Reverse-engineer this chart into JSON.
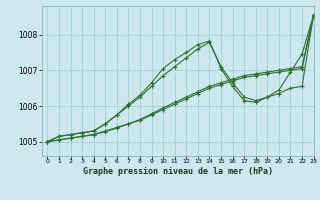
{
  "title": "Graphe pression niveau de la mer (hPa)",
  "background_color": "#cce8ee",
  "grid_color": "#99cccc",
  "line_color": "#2d6e2d",
  "xlim": [
    -0.5,
    23
  ],
  "ylim": [
    1004.6,
    1008.8
  ],
  "yticks": [
    1005,
    1006,
    1007,
    1008
  ],
  "xticks": [
    0,
    1,
    2,
    3,
    4,
    5,
    6,
    7,
    8,
    9,
    10,
    11,
    12,
    13,
    14,
    15,
    16,
    17,
    18,
    19,
    20,
    21,
    22,
    23
  ],
  "series": [
    [
      1005.0,
      1005.05,
      1005.1,
      1005.15,
      1005.2,
      1005.3,
      1005.4,
      1005.5,
      1005.6,
      1005.75,
      1005.9,
      1006.05,
      1006.2,
      1006.35,
      1006.5,
      1006.6,
      1006.7,
      1006.8,
      1006.85,
      1006.9,
      1006.95,
      1007.0,
      1007.05,
      1008.55
    ],
    [
      1005.0,
      1005.05,
      1005.1,
      1005.15,
      1005.2,
      1005.28,
      1005.38,
      1005.5,
      1005.62,
      1005.78,
      1005.95,
      1006.1,
      1006.25,
      1006.4,
      1006.55,
      1006.65,
      1006.75,
      1006.85,
      1006.9,
      1006.95,
      1007.0,
      1007.05,
      1007.1,
      1008.55
    ],
    [
      1005.0,
      1005.15,
      1005.2,
      1005.25,
      1005.3,
      1005.5,
      1005.75,
      1006.0,
      1006.25,
      1006.55,
      1006.85,
      1007.1,
      1007.35,
      1007.6,
      1007.78,
      1007.1,
      1006.65,
      1006.25,
      1006.15,
      1006.25,
      1006.35,
      1006.5,
      1006.55,
      1008.55
    ],
    [
      1005.0,
      1005.15,
      1005.2,
      1005.25,
      1005.3,
      1005.5,
      1005.75,
      1006.05,
      1006.3,
      1006.65,
      1007.05,
      1007.3,
      1007.5,
      1007.72,
      1007.82,
      1007.05,
      1006.55,
      1006.15,
      1006.1,
      1006.25,
      1006.45,
      1006.95,
      1007.45,
      1008.55
    ]
  ]
}
